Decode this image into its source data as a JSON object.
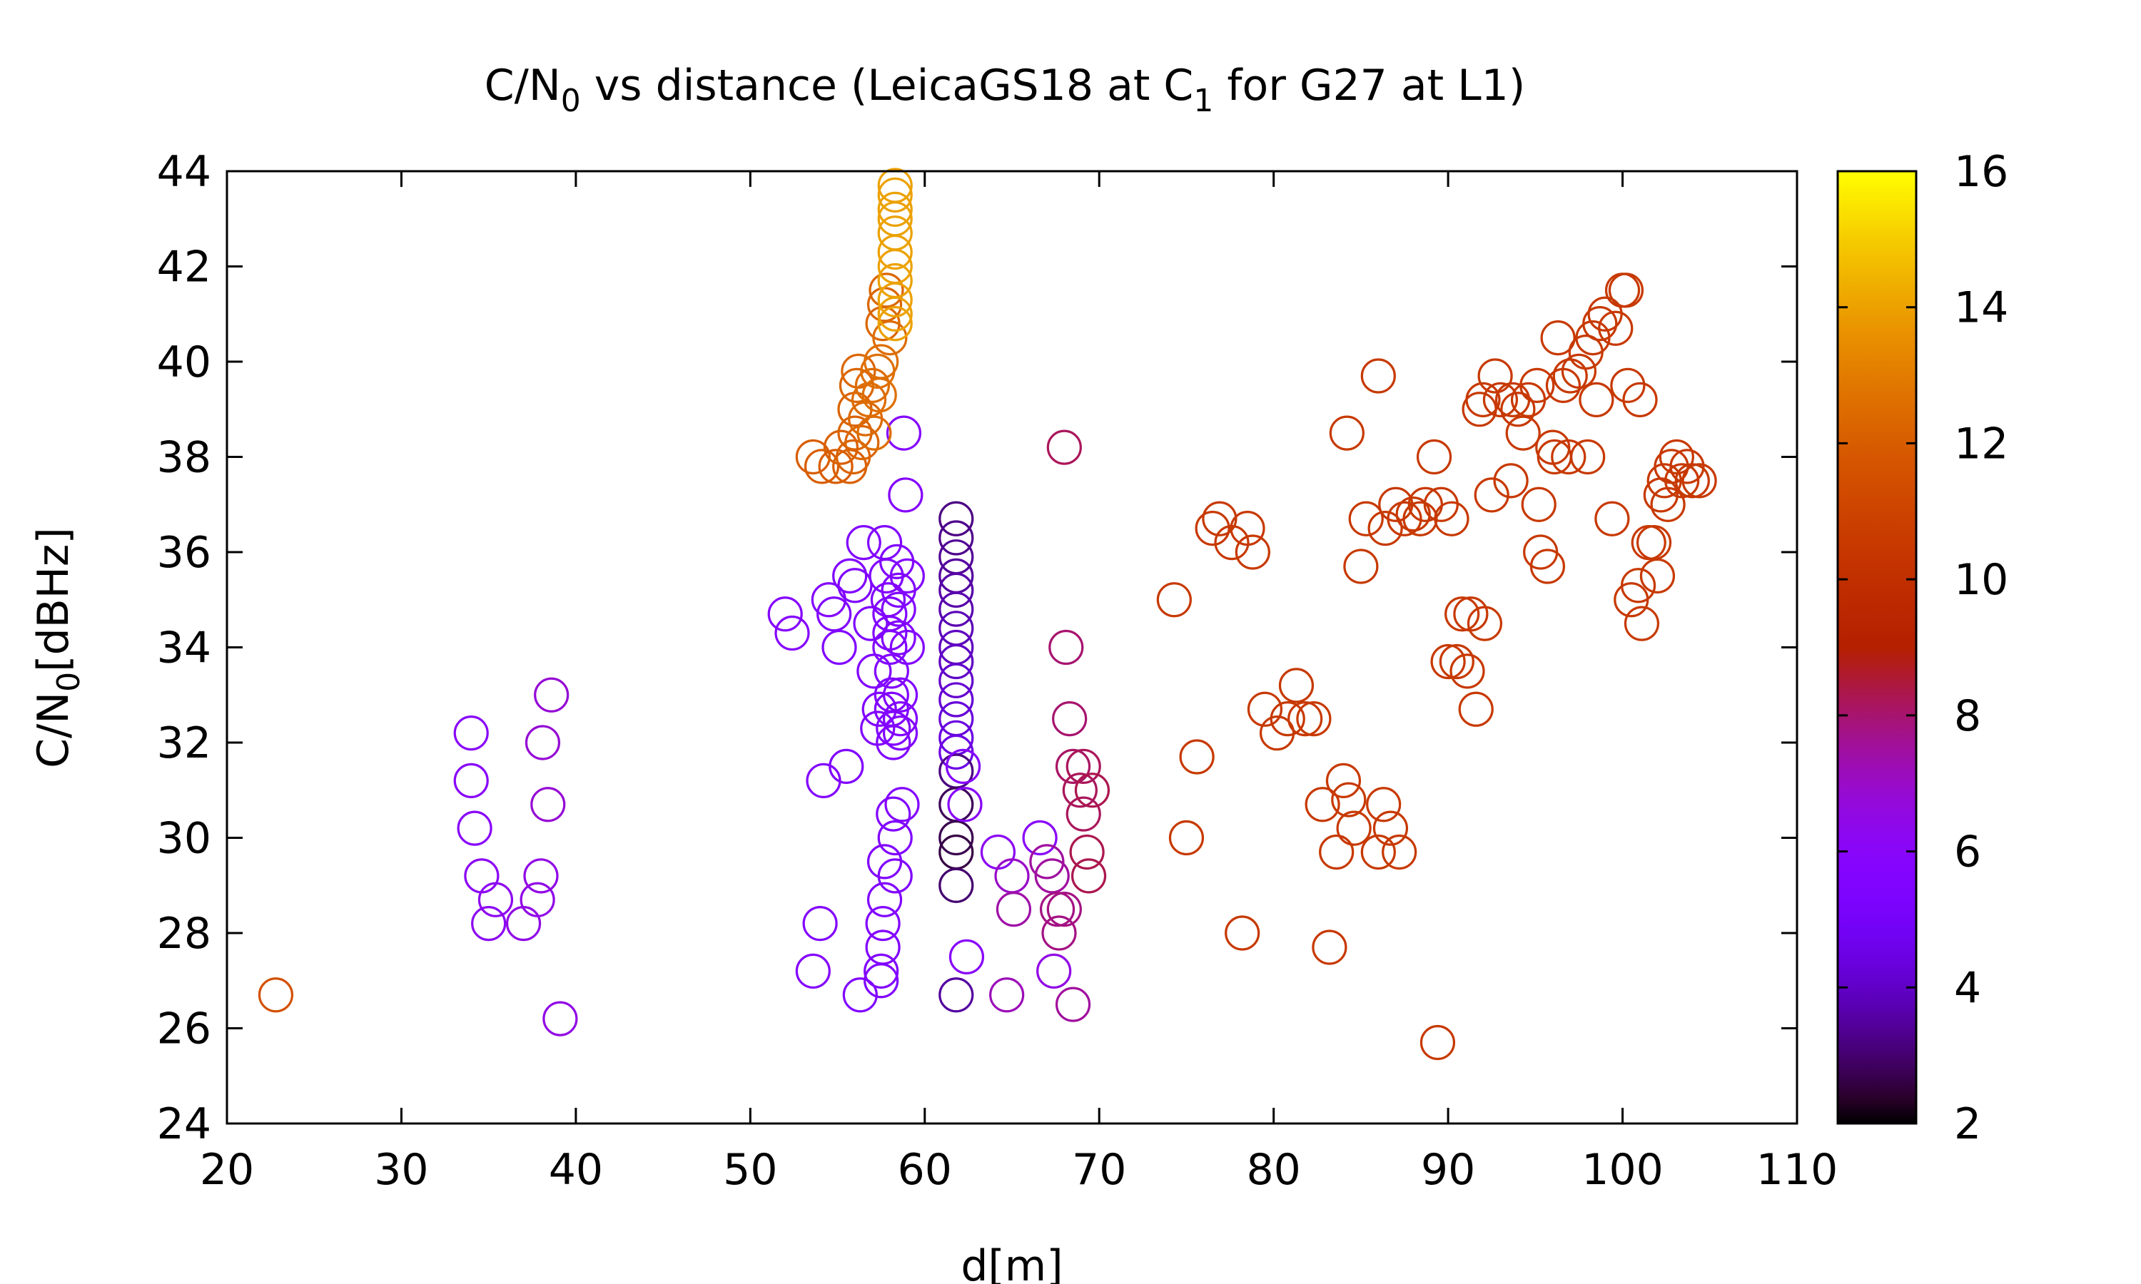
{
  "chart_data": {
    "type": "scatter",
    "title": {
      "main": "C/N",
      "sub": "0",
      "rest": " vs distance (LeicaGS18 at C",
      "sub2": "1",
      "rest2": " for G27 at L1)"
    },
    "xlabel": "d[m]",
    "ylabel": {
      "main": "C/N",
      "sub": "0",
      "rest": "[dBHz]"
    },
    "xlim": [
      20,
      110
    ],
    "ylim": [
      24,
      44
    ],
    "xticks": [
      20,
      30,
      40,
      50,
      60,
      70,
      80,
      90,
      100,
      110
    ],
    "yticks": [
      24,
      26,
      28,
      30,
      32,
      34,
      36,
      38,
      40,
      42,
      44
    ],
    "colorbar": {
      "range": [
        2,
        16
      ],
      "ticks": [
        2,
        4,
        6,
        8,
        10,
        12,
        14,
        16
      ],
      "palette": "gnuplot"
    },
    "marker": "open-circle",
    "grid": false,
    "points": [
      {
        "x": 22.8,
        "y": 26.7,
        "c": 11.5
      },
      {
        "x": 34.0,
        "y": 32.2,
        "c": 6.0
      },
      {
        "x": 34.0,
        "y": 31.2,
        "c": 6.0
      },
      {
        "x": 34.2,
        "y": 30.2,
        "c": 6.0
      },
      {
        "x": 34.6,
        "y": 29.2,
        "c": 6.2
      },
      {
        "x": 35.0,
        "y": 28.2,
        "c": 6.2
      },
      {
        "x": 35.4,
        "y": 28.7,
        "c": 6.3
      },
      {
        "x": 37.0,
        "y": 28.2,
        "c": 6.5
      },
      {
        "x": 37.8,
        "y": 28.7,
        "c": 6.5
      },
      {
        "x": 38.0,
        "y": 29.2,
        "c": 6.5
      },
      {
        "x": 38.1,
        "y": 32.0,
        "c": 6.8
      },
      {
        "x": 38.4,
        "y": 30.7,
        "c": 6.8
      },
      {
        "x": 38.6,
        "y": 33.0,
        "c": 6.8
      },
      {
        "x": 39.1,
        "y": 26.2,
        "c": 6.5
      },
      {
        "x": 52.0,
        "y": 34.7,
        "c": 5.8
      },
      {
        "x": 52.4,
        "y": 34.3,
        "c": 5.8
      },
      {
        "x": 53.6,
        "y": 27.2,
        "c": 5.8
      },
      {
        "x": 54.0,
        "y": 28.2,
        "c": 5.7
      },
      {
        "x": 54.2,
        "y": 31.2,
        "c": 5.7
      },
      {
        "x": 54.5,
        "y": 35.0,
        "c": 5.7
      },
      {
        "x": 54.8,
        "y": 34.7,
        "c": 5.6
      },
      {
        "x": 55.1,
        "y": 34.0,
        "c": 5.6
      },
      {
        "x": 55.5,
        "y": 31.5,
        "c": 5.5
      },
      {
        "x": 55.7,
        "y": 35.5,
        "c": 5.5
      },
      {
        "x": 56.0,
        "y": 35.3,
        "c": 5.5
      },
      {
        "x": 56.3,
        "y": 26.7,
        "c": 5.5
      },
      {
        "x": 56.5,
        "y": 36.2,
        "c": 5.5
      },
      {
        "x": 56.9,
        "y": 34.5,
        "c": 5.5
      },
      {
        "x": 57.1,
        "y": 33.5,
        "c": 5.6
      },
      {
        "x": 57.3,
        "y": 32.3,
        "c": 5.6
      },
      {
        "x": 57.4,
        "y": 32.7,
        "c": 5.6
      },
      {
        "x": 57.5,
        "y": 27.0,
        "c": 5.6
      },
      {
        "x": 57.5,
        "y": 27.2,
        "c": 5.6
      },
      {
        "x": 57.6,
        "y": 27.7,
        "c": 5.6
      },
      {
        "x": 57.6,
        "y": 28.2,
        "c": 5.6
      },
      {
        "x": 57.7,
        "y": 28.7,
        "c": 5.6
      },
      {
        "x": 57.7,
        "y": 29.5,
        "c": 5.6
      },
      {
        "x": 57.7,
        "y": 36.2,
        "c": 5.6
      },
      {
        "x": 57.8,
        "y": 35.5,
        "c": 5.6
      },
      {
        "x": 57.9,
        "y": 35.0,
        "c": 5.6
      },
      {
        "x": 58.0,
        "y": 34.7,
        "c": 5.6
      },
      {
        "x": 58.0,
        "y": 34.3,
        "c": 5.6
      },
      {
        "x": 58.0,
        "y": 34.0,
        "c": 5.6
      },
      {
        "x": 58.1,
        "y": 33.5,
        "c": 5.6
      },
      {
        "x": 58.1,
        "y": 33.0,
        "c": 5.6
      },
      {
        "x": 58.1,
        "y": 32.7,
        "c": 5.6
      },
      {
        "x": 58.2,
        "y": 32.3,
        "c": 5.6
      },
      {
        "x": 58.2,
        "y": 32.0,
        "c": 5.6
      },
      {
        "x": 58.2,
        "y": 30.5,
        "c": 5.6
      },
      {
        "x": 58.3,
        "y": 30.0,
        "c": 5.6
      },
      {
        "x": 58.3,
        "y": 29.2,
        "c": 5.6
      },
      {
        "x": 58.4,
        "y": 35.8,
        "c": 5.6
      },
      {
        "x": 58.5,
        "y": 35.2,
        "c": 5.6
      },
      {
        "x": 58.5,
        "y": 34.8,
        "c": 5.6
      },
      {
        "x": 58.5,
        "y": 34.2,
        "c": 5.6
      },
      {
        "x": 58.6,
        "y": 33.0,
        "c": 5.6
      },
      {
        "x": 58.6,
        "y": 32.5,
        "c": 5.6
      },
      {
        "x": 58.6,
        "y": 32.2,
        "c": 5.6
      },
      {
        "x": 58.7,
        "y": 30.7,
        "c": 5.7
      },
      {
        "x": 58.8,
        "y": 38.5,
        "c": 5.8
      },
      {
        "x": 58.9,
        "y": 37.2,
        "c": 5.8
      },
      {
        "x": 59.0,
        "y": 34.0,
        "c": 5.7
      },
      {
        "x": 59.0,
        "y": 35.5,
        "c": 5.7
      },
      {
        "x": 61.8,
        "y": 36.7,
        "c": 3.2
      },
      {
        "x": 61.8,
        "y": 36.3,
        "c": 3.3
      },
      {
        "x": 61.8,
        "y": 35.9,
        "c": 3.4
      },
      {
        "x": 61.8,
        "y": 35.5,
        "c": 3.5
      },
      {
        "x": 61.8,
        "y": 35.2,
        "c": 3.6
      },
      {
        "x": 61.8,
        "y": 34.8,
        "c": 3.7
      },
      {
        "x": 61.8,
        "y": 34.4,
        "c": 3.8
      },
      {
        "x": 61.8,
        "y": 34.0,
        "c": 3.9
      },
      {
        "x": 61.8,
        "y": 33.7,
        "c": 4.0
      },
      {
        "x": 61.8,
        "y": 33.3,
        "c": 4.1
      },
      {
        "x": 61.8,
        "y": 32.9,
        "c": 4.2
      },
      {
        "x": 61.8,
        "y": 32.5,
        "c": 4.3
      },
      {
        "x": 61.8,
        "y": 32.1,
        "c": 4.4
      },
      {
        "x": 61.8,
        "y": 31.8,
        "c": 4.5
      },
      {
        "x": 61.8,
        "y": 31.4,
        "c": 3.2
      },
      {
        "x": 61.8,
        "y": 30.7,
        "c": 2.8
      },
      {
        "x": 61.8,
        "y": 30.0,
        "c": 2.7
      },
      {
        "x": 61.8,
        "y": 29.7,
        "c": 2.6
      },
      {
        "x": 61.8,
        "y": 29.0,
        "c": 3.0
      },
      {
        "x": 61.8,
        "y": 26.7,
        "c": 3.5
      },
      {
        "x": 62.2,
        "y": 31.5,
        "c": 5.8
      },
      {
        "x": 62.3,
        "y": 30.7,
        "c": 6.0
      },
      {
        "x": 62.4,
        "y": 27.5,
        "c": 6.0
      },
      {
        "x": 64.2,
        "y": 29.7,
        "c": 6.2
      },
      {
        "x": 64.7,
        "y": 26.7,
        "c": 7.2
      },
      {
        "x": 65.0,
        "y": 29.2,
        "c": 7.0
      },
      {
        "x": 65.1,
        "y": 28.5,
        "c": 7.4
      },
      {
        "x": 66.6,
        "y": 30.0,
        "c": 6.0
      },
      {
        "x": 67.0,
        "y": 29.5,
        "c": 7.5
      },
      {
        "x": 67.3,
        "y": 29.2,
        "c": 7.5
      },
      {
        "x": 67.4,
        "y": 27.2,
        "c": 6.5
      },
      {
        "x": 67.6,
        "y": 28.5,
        "c": 7.8
      },
      {
        "x": 67.7,
        "y": 28.0,
        "c": 7.8
      },
      {
        "x": 68.0,
        "y": 38.2,
        "c": 8.2
      },
      {
        "x": 68.0,
        "y": 28.5,
        "c": 7.8
      },
      {
        "x": 68.1,
        "y": 34.0,
        "c": 8.0
      },
      {
        "x": 68.3,
        "y": 32.5,
        "c": 8.0
      },
      {
        "x": 68.5,
        "y": 26.5,
        "c": 7.5
      },
      {
        "x": 68.5,
        "y": 31.5,
        "c": 8.1
      },
      {
        "x": 68.9,
        "y": 31.0,
        "c": 8.2
      },
      {
        "x": 69.1,
        "y": 30.5,
        "c": 8.2
      },
      {
        "x": 69.1,
        "y": 31.5,
        "c": 8.2
      },
      {
        "x": 69.3,
        "y": 29.7,
        "c": 8.3
      },
      {
        "x": 69.4,
        "y": 29.2,
        "c": 8.3
      },
      {
        "x": 69.6,
        "y": 31.0,
        "c": 8.3
      },
      {
        "x": 53.6,
        "y": 38.0,
        "c": 12.0
      },
      {
        "x": 54.1,
        "y": 37.8,
        "c": 12.0
      },
      {
        "x": 54.9,
        "y": 37.8,
        "c": 12.0
      },
      {
        "x": 55.2,
        "y": 38.2,
        "c": 12.1
      },
      {
        "x": 55.7,
        "y": 37.8,
        "c": 12.1
      },
      {
        "x": 55.9,
        "y": 38.0,
        "c": 12.2
      },
      {
        "x": 56.0,
        "y": 38.5,
        "c": 12.2
      },
      {
        "x": 56.0,
        "y": 39.0,
        "c": 12.2
      },
      {
        "x": 56.1,
        "y": 39.5,
        "c": 12.3
      },
      {
        "x": 56.2,
        "y": 39.8,
        "c": 12.3
      },
      {
        "x": 56.4,
        "y": 38.3,
        "c": 12.3
      },
      {
        "x": 56.6,
        "y": 38.8,
        "c": 12.4
      },
      {
        "x": 56.8,
        "y": 39.2,
        "c": 12.5
      },
      {
        "x": 57.0,
        "y": 39.5,
        "c": 12.5
      },
      {
        "x": 57.1,
        "y": 38.5,
        "c": 12.5
      },
      {
        "x": 57.3,
        "y": 39.8,
        "c": 12.6
      },
      {
        "x": 57.4,
        "y": 39.3,
        "c": 12.6
      },
      {
        "x": 57.5,
        "y": 40.0,
        "c": 12.6
      },
      {
        "x": 57.6,
        "y": 40.8,
        "c": 12.3
      },
      {
        "x": 57.7,
        "y": 41.2,
        "c": 12.3
      },
      {
        "x": 57.8,
        "y": 41.5,
        "c": 12.3
      },
      {
        "x": 58.0,
        "y": 40.5,
        "c": 12.5
      },
      {
        "x": 58.3,
        "y": 43.7,
        "c": 14.0
      },
      {
        "x": 58.3,
        "y": 43.5,
        "c": 14.0
      },
      {
        "x": 58.3,
        "y": 43.2,
        "c": 14.0
      },
      {
        "x": 58.3,
        "y": 43.0,
        "c": 14.0
      },
      {
        "x": 58.3,
        "y": 42.7,
        "c": 14.0
      },
      {
        "x": 58.3,
        "y": 42.3,
        "c": 14.0
      },
      {
        "x": 58.3,
        "y": 42.0,
        "c": 14.0
      },
      {
        "x": 58.3,
        "y": 41.7,
        "c": 14.0
      },
      {
        "x": 58.3,
        "y": 41.3,
        "c": 14.0
      },
      {
        "x": 58.3,
        "y": 41.0,
        "c": 14.0
      },
      {
        "x": 58.3,
        "y": 40.8,
        "c": 14.0
      },
      {
        "x": 74.3,
        "y": 35.0,
        "c": 10.5
      },
      {
        "x": 75.0,
        "y": 30.0,
        "c": 10.5
      },
      {
        "x": 75.6,
        "y": 31.7,
        "c": 10.5
      },
      {
        "x": 76.5,
        "y": 36.5,
        "c": 10.5
      },
      {
        "x": 76.9,
        "y": 36.7,
        "c": 10.5
      },
      {
        "x": 77.6,
        "y": 36.2,
        "c": 10.5
      },
      {
        "x": 78.2,
        "y": 28.0,
        "c": 10.5
      },
      {
        "x": 78.5,
        "y": 36.5,
        "c": 10.5
      },
      {
        "x": 78.8,
        "y": 36.0,
        "c": 10.5
      },
      {
        "x": 79.5,
        "y": 32.7,
        "c": 10.5
      },
      {
        "x": 80.2,
        "y": 32.2,
        "c": 10.5
      },
      {
        "x": 80.8,
        "y": 32.5,
        "c": 10.5
      },
      {
        "x": 81.3,
        "y": 33.2,
        "c": 10.5
      },
      {
        "x": 81.8,
        "y": 32.5,
        "c": 10.5
      },
      {
        "x": 82.3,
        "y": 32.5,
        "c": 10.5
      },
      {
        "x": 82.8,
        "y": 30.7,
        "c": 10.5
      },
      {
        "x": 83.2,
        "y": 27.7,
        "c": 10.5
      },
      {
        "x": 83.6,
        "y": 29.7,
        "c": 10.5
      },
      {
        "x": 84.0,
        "y": 31.2,
        "c": 10.5
      },
      {
        "x": 84.2,
        "y": 38.5,
        "c": 10.5
      },
      {
        "x": 84.3,
        "y": 30.8,
        "c": 10.5
      },
      {
        "x": 84.6,
        "y": 30.2,
        "c": 10.5
      },
      {
        "x": 85.0,
        "y": 35.7,
        "c": 10.5
      },
      {
        "x": 85.3,
        "y": 36.7,
        "c": 10.5
      },
      {
        "x": 86.0,
        "y": 39.7,
        "c": 10.5
      },
      {
        "x": 86.0,
        "y": 29.7,
        "c": 10.5
      },
      {
        "x": 86.3,
        "y": 30.7,
        "c": 10.5
      },
      {
        "x": 86.4,
        "y": 36.5,
        "c": 10.5
      },
      {
        "x": 86.7,
        "y": 30.2,
        "c": 10.5
      },
      {
        "x": 87.0,
        "y": 37.0,
        "c": 10.5
      },
      {
        "x": 87.2,
        "y": 29.7,
        "c": 10.5
      },
      {
        "x": 87.5,
        "y": 36.7,
        "c": 10.5
      },
      {
        "x": 88.0,
        "y": 36.8,
        "c": 10.5
      },
      {
        "x": 88.4,
        "y": 36.7,
        "c": 10.5
      },
      {
        "x": 88.7,
        "y": 37.0,
        "c": 10.5
      },
      {
        "x": 89.2,
        "y": 38.0,
        "c": 10.5
      },
      {
        "x": 89.4,
        "y": 25.7,
        "c": 10.5
      },
      {
        "x": 89.6,
        "y": 37.0,
        "c": 10.5
      },
      {
        "x": 90.0,
        "y": 33.7,
        "c": 10.5
      },
      {
        "x": 90.2,
        "y": 36.7,
        "c": 10.5
      },
      {
        "x": 90.5,
        "y": 33.7,
        "c": 10.5
      },
      {
        "x": 90.8,
        "y": 34.7,
        "c": 10.5
      },
      {
        "x": 91.1,
        "y": 33.5,
        "c": 10.5
      },
      {
        "x": 91.3,
        "y": 34.7,
        "c": 10.5
      },
      {
        "x": 91.6,
        "y": 32.7,
        "c": 10.5
      },
      {
        "x": 91.8,
        "y": 39.0,
        "c": 10.5
      },
      {
        "x": 92.0,
        "y": 39.2,
        "c": 10.5
      },
      {
        "x": 92.1,
        "y": 34.5,
        "c": 10.5
      },
      {
        "x": 92.5,
        "y": 37.2,
        "c": 10.5
      },
      {
        "x": 92.7,
        "y": 39.7,
        "c": 10.5
      },
      {
        "x": 93.0,
        "y": 39.2,
        "c": 10.5
      },
      {
        "x": 93.6,
        "y": 37.5,
        "c": 10.5
      },
      {
        "x": 93.7,
        "y": 39.2,
        "c": 10.5
      },
      {
        "x": 94.0,
        "y": 39.0,
        "c": 10.5
      },
      {
        "x": 94.3,
        "y": 38.5,
        "c": 10.5
      },
      {
        "x": 94.6,
        "y": 39.2,
        "c": 10.5
      },
      {
        "x": 95.1,
        "y": 39.5,
        "c": 10.5
      },
      {
        "x": 95.2,
        "y": 37.0,
        "c": 10.5
      },
      {
        "x": 95.3,
        "y": 36.0,
        "c": 10.5
      },
      {
        "x": 95.7,
        "y": 35.7,
        "c": 10.5
      },
      {
        "x": 96.0,
        "y": 38.2,
        "c": 10.5
      },
      {
        "x": 96.1,
        "y": 38.0,
        "c": 10.5
      },
      {
        "x": 96.3,
        "y": 40.5,
        "c": 10.5
      },
      {
        "x": 96.6,
        "y": 39.5,
        "c": 10.5
      },
      {
        "x": 96.9,
        "y": 38.0,
        "c": 10.5
      },
      {
        "x": 97.0,
        "y": 39.7,
        "c": 10.5
      },
      {
        "x": 97.5,
        "y": 39.8,
        "c": 10.5
      },
      {
        "x": 97.9,
        "y": 40.2,
        "c": 10.5
      },
      {
        "x": 98.0,
        "y": 38.0,
        "c": 10.5
      },
      {
        "x": 98.3,
        "y": 40.5,
        "c": 10.5
      },
      {
        "x": 98.5,
        "y": 39.2,
        "c": 10.5
      },
      {
        "x": 98.7,
        "y": 40.8,
        "c": 10.5
      },
      {
        "x": 99.0,
        "y": 41.0,
        "c": 10.5
      },
      {
        "x": 99.4,
        "y": 36.7,
        "c": 10.5
      },
      {
        "x": 99.6,
        "y": 40.7,
        "c": 10.5
      },
      {
        "x": 100.0,
        "y": 41.5,
        "c": 10.5
      },
      {
        "x": 100.2,
        "y": 41.5,
        "c": 10.5
      },
      {
        "x": 100.3,
        "y": 39.5,
        "c": 10.5
      },
      {
        "x": 100.5,
        "y": 35.0,
        "c": 10.5
      },
      {
        "x": 100.9,
        "y": 35.3,
        "c": 10.5
      },
      {
        "x": 101.0,
        "y": 39.2,
        "c": 10.5
      },
      {
        "x": 101.1,
        "y": 34.5,
        "c": 10.5
      },
      {
        "x": 101.5,
        "y": 36.2,
        "c": 10.5
      },
      {
        "x": 101.8,
        "y": 36.2,
        "c": 10.5
      },
      {
        "x": 102.0,
        "y": 35.5,
        "c": 10.5
      },
      {
        "x": 102.2,
        "y": 37.2,
        "c": 10.5
      },
      {
        "x": 102.4,
        "y": 37.5,
        "c": 10.5
      },
      {
        "x": 102.6,
        "y": 37.0,
        "c": 10.5
      },
      {
        "x": 102.8,
        "y": 37.8,
        "c": 10.5
      },
      {
        "x": 103.1,
        "y": 38.0,
        "c": 10.5
      },
      {
        "x": 103.4,
        "y": 37.5,
        "c": 10.5
      },
      {
        "x": 103.7,
        "y": 37.8,
        "c": 10.5
      },
      {
        "x": 104.0,
        "y": 37.5,
        "c": 10.5
      },
      {
        "x": 104.4,
        "y": 37.5,
        "c": 10.5
      }
    ]
  }
}
